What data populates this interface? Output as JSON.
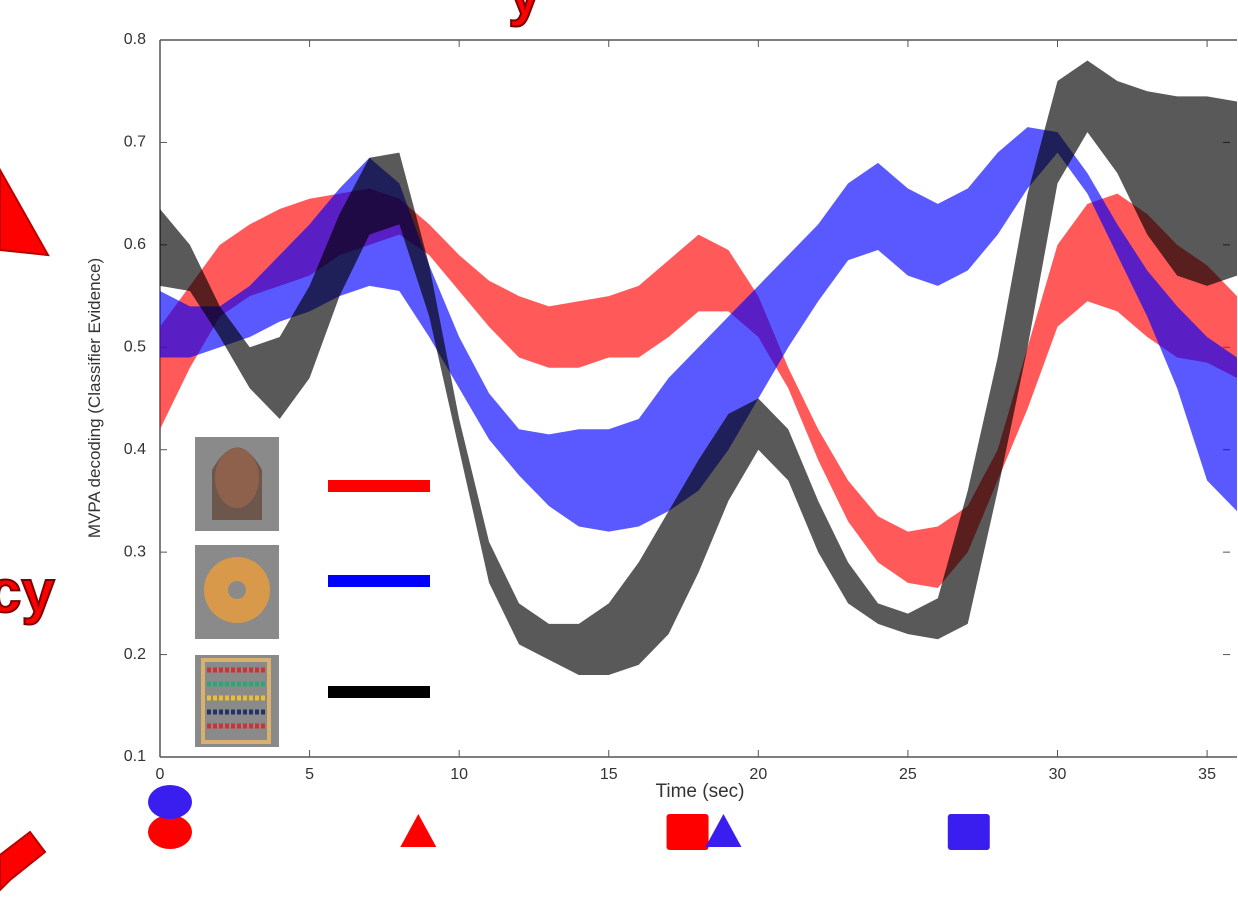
{
  "chart_data": {
    "type": "band",
    "xlabel": "Time (sec)",
    "ylabel": "MVPA decoding (Classifier Evidence)",
    "annotations": [
      "y",
      "cy"
    ],
    "xlim": [
      0,
      36
    ],
    "ylim": [
      0.1,
      0.8
    ],
    "xticks": [
      0,
      5,
      10,
      15,
      20,
      25,
      30,
      35
    ],
    "yticks": [
      0.1,
      0.2,
      0.3,
      0.4,
      0.5,
      0.6,
      0.7,
      0.8
    ],
    "x": [
      0,
      1,
      2,
      3,
      4,
      5,
      6,
      7,
      8,
      9,
      10,
      11,
      12,
      13,
      14,
      15,
      16,
      17,
      18,
      19,
      20,
      21,
      22,
      23,
      24,
      25,
      26,
      27,
      28,
      29,
      30,
      31,
      32,
      33,
      34,
      35,
      36
    ],
    "series": [
      {
        "color": "#ff0000",
        "upper": [
          0.52,
          0.56,
          0.6,
          0.62,
          0.635,
          0.645,
          0.65,
          0.655,
          0.645,
          0.62,
          0.59,
          0.565,
          0.55,
          0.54,
          0.545,
          0.55,
          0.56,
          0.585,
          0.61,
          0.595,
          0.55,
          0.48,
          0.42,
          0.37,
          0.335,
          0.32,
          0.325,
          0.345,
          0.4,
          0.5,
          0.6,
          0.64,
          0.65,
          0.63,
          0.6,
          0.58,
          0.55
        ],
        "lower": [
          0.42,
          0.48,
          0.53,
          0.55,
          0.56,
          0.57,
          0.59,
          0.6,
          0.61,
          0.59,
          0.555,
          0.52,
          0.49,
          0.48,
          0.48,
          0.49,
          0.49,
          0.51,
          0.535,
          0.535,
          0.51,
          0.46,
          0.39,
          0.33,
          0.29,
          0.27,
          0.265,
          0.3,
          0.37,
          0.44,
          0.52,
          0.545,
          0.535,
          0.51,
          0.49,
          0.485,
          0.47
        ]
      },
      {
        "color": "#0000ff",
        "upper": [
          0.555,
          0.54,
          0.54,
          0.56,
          0.59,
          0.62,
          0.655,
          0.685,
          0.66,
          0.58,
          0.51,
          0.455,
          0.42,
          0.415,
          0.42,
          0.42,
          0.43,
          0.47,
          0.5,
          0.53,
          0.56,
          0.59,
          0.62,
          0.66,
          0.68,
          0.655,
          0.64,
          0.655,
          0.69,
          0.715,
          0.71,
          0.67,
          0.62,
          0.575,
          0.54,
          0.51,
          0.49
        ],
        "lower": [
          0.49,
          0.49,
          0.5,
          0.51,
          0.525,
          0.535,
          0.55,
          0.56,
          0.555,
          0.51,
          0.46,
          0.41,
          0.375,
          0.345,
          0.325,
          0.32,
          0.325,
          0.34,
          0.36,
          0.4,
          0.45,
          0.5,
          0.545,
          0.585,
          0.595,
          0.57,
          0.56,
          0.575,
          0.61,
          0.655,
          0.69,
          0.65,
          0.59,
          0.53,
          0.46,
          0.37,
          0.34
        ]
      },
      {
        "color": "#000000",
        "upper": [
          0.635,
          0.6,
          0.54,
          0.5,
          0.51,
          0.56,
          0.63,
          0.685,
          0.69,
          0.58,
          0.43,
          0.31,
          0.25,
          0.23,
          0.23,
          0.25,
          0.29,
          0.34,
          0.39,
          0.435,
          0.45,
          0.42,
          0.35,
          0.29,
          0.25,
          0.24,
          0.255,
          0.36,
          0.49,
          0.65,
          0.76,
          0.78,
          0.76,
          0.75,
          0.745,
          0.745,
          0.74
        ],
        "lower": [
          0.56,
          0.555,
          0.51,
          0.46,
          0.43,
          0.47,
          0.55,
          0.61,
          0.62,
          0.53,
          0.4,
          0.27,
          0.21,
          0.195,
          0.18,
          0.18,
          0.19,
          0.22,
          0.28,
          0.35,
          0.4,
          0.37,
          0.3,
          0.25,
          0.23,
          0.22,
          0.215,
          0.23,
          0.36,
          0.5,
          0.66,
          0.71,
          0.67,
          0.61,
          0.57,
          0.56,
          0.57
        ]
      }
    ],
    "events": [
      {
        "x": 0,
        "shape": "circle",
        "color": "#ff0000"
      },
      {
        "x": 0,
        "shape": "circle",
        "color": "#3a1ef0"
      },
      {
        "x": 8.3,
        "shape": "triangle",
        "color": "#ff0000"
      },
      {
        "x": 17.3,
        "shape": "square",
        "color": "#ff0000"
      },
      {
        "x": 18.5,
        "shape": "triangle",
        "color": "#3a1ef0"
      },
      {
        "x": 26.7,
        "shape": "square",
        "color": "#3a1ef0"
      }
    ]
  }
}
